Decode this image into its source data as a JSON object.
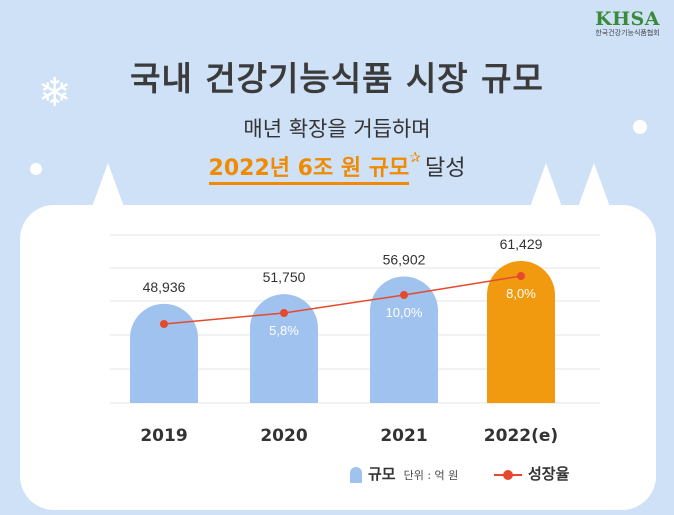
{
  "logo": {
    "main": "KHSA",
    "sub": "한국건강기능식품협회"
  },
  "title": "국내 건강기능식품 시장 규모",
  "subtitle": "매년 확장을 거듭하며",
  "headline": {
    "highlight": "2022년 6조 원 규모",
    "rest": "달성"
  },
  "legend": {
    "bar_label": "규모",
    "unit": "단위 : 억 원",
    "line_label": "성장율"
  },
  "colors": {
    "bar": "#9fc2ee",
    "bar_highlight": "#f29a0f",
    "line": "#e64a2e"
  },
  "chart_data": {
    "type": "bar",
    "categories": [
      "2019",
      "2020",
      "2021",
      "2022(e)"
    ],
    "series": [
      {
        "name": "규모",
        "values": [
          48936,
          51750,
          56902,
          61429
        ],
        "labels": [
          "48,936",
          "51,750",
          "56,902",
          "61,429"
        ]
      },
      {
        "name": "성장율",
        "type": "line",
        "values": [
          null,
          5.8,
          10.0,
          8.0
        ],
        "labels": [
          "",
          "5,8%",
          "10,0%",
          "8,0%"
        ]
      }
    ],
    "highlight_index": 3,
    "grid": true
  }
}
